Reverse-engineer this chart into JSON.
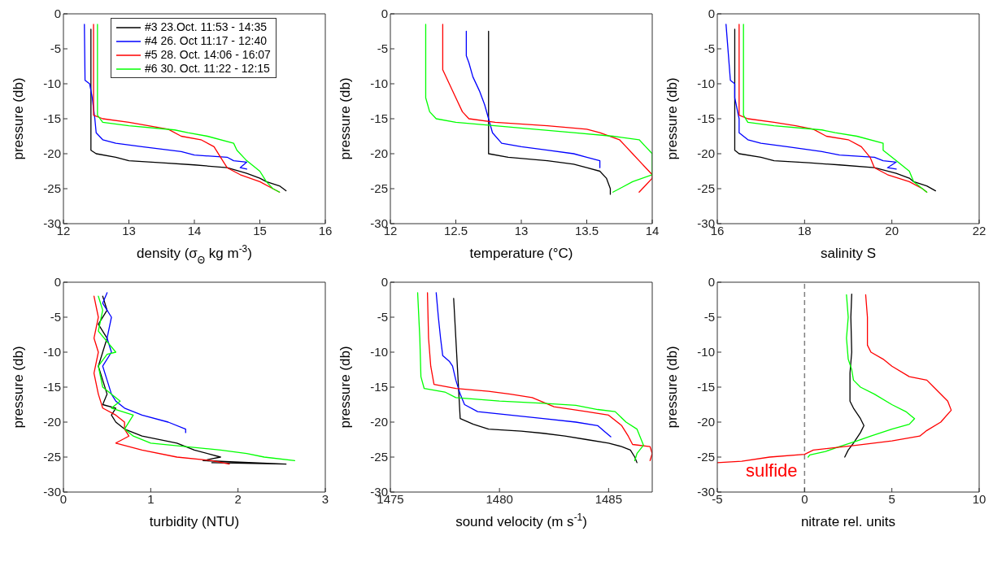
{
  "chart_data": [
    {
      "type": "line",
      "xlabel": "density (σ$_{Θ}$  kg m$^{-3}$)",
      "ylabel": "pressure (db)",
      "xlim": [
        12,
        16
      ],
      "xticks": [
        12,
        13,
        14,
        15,
        16
      ],
      "ylim": [
        -30,
        0
      ],
      "yticks": [
        -30,
        -25,
        -20,
        -15,
        -10,
        -5,
        0
      ],
      "legend": "top left",
      "marker": "none",
      "series": [
        {
          "name": "#3 23.Oct. 11:53 - 14:35",
          "color": "#000000",
          "x": [
            12.42,
            12.42,
            12.5,
            12.8,
            13.0,
            13.5,
            14.0,
            14.5,
            14.8,
            15.0,
            15.1,
            15.3,
            15.4
          ],
          "values": [
            -2.2,
            -19.5,
            -20,
            -20.5,
            -21,
            -21.3,
            -21.6,
            -22,
            -22.8,
            -23.5,
            -24,
            -24.6,
            -25.3
          ]
        },
        {
          "name": "#4 26. Oct 11:17 - 12:40",
          "color": "#0000ff",
          "x": [
            12.32,
            12.33,
            12.4,
            12.44,
            12.48,
            12.5,
            12.6,
            12.8,
            13.2,
            13.8,
            14.0,
            14.5,
            14.6,
            14.8,
            14.7,
            14.8
          ],
          "values": [
            -1.5,
            -9.5,
            -10,
            -12,
            -15,
            -17,
            -18,
            -18.5,
            -19,
            -19.7,
            -20.2,
            -20.5,
            -21,
            -21.2,
            -22,
            -22.2
          ]
        },
        {
          "name": "#5 28. Oct. 14:06 - 16:07",
          "color": "#ff0000",
          "x": [
            12.46,
            12.46,
            12.6,
            13.0,
            13.3,
            13.6,
            13.8,
            14.1,
            14.3,
            14.4,
            14.5,
            14.7,
            15.0,
            15.2,
            15.3
          ],
          "values": [
            -1.5,
            -14.5,
            -15,
            -15.5,
            -16,
            -16.5,
            -17.5,
            -18,
            -19,
            -20.5,
            -22,
            -23,
            -24,
            -25,
            -25.5
          ]
        },
        {
          "name": "#6 30. Oct. 11:22 - 12:15",
          "color": "#00ff00",
          "x": [
            12.52,
            12.52,
            12.6,
            13.0,
            13.7,
            13.9,
            14.2,
            14.6,
            14.65,
            14.8,
            15.0,
            15.1,
            15.2,
            15.3
          ],
          "values": [
            -1.5,
            -14.5,
            -15.5,
            -16,
            -16.6,
            -17,
            -17.5,
            -18.5,
            -19.5,
            -21,
            -22.5,
            -24,
            -25,
            -25.5
          ]
        }
      ]
    },
    {
      "type": "line",
      "xlabel": "temperature (°C)",
      "ylabel": "pressure (db)",
      "xlim": [
        12,
        14
      ],
      "xticks": [
        12,
        12.5,
        13,
        13.5,
        14
      ],
      "ylim": [
        -30,
        0
      ],
      "yticks": [
        -30,
        -25,
        -20,
        -15,
        -10,
        -5,
        0
      ],
      "marker": "none",
      "series": [
        {
          "color": "#000000",
          "x": [
            12.75,
            12.75,
            12.9,
            13.2,
            13.4,
            13.5,
            13.6,
            13.65,
            13.68,
            13.68
          ],
          "values": [
            -2.5,
            -20,
            -20.5,
            -21,
            -21.5,
            -22,
            -22.5,
            -23.5,
            -25,
            -25.8
          ]
        },
        {
          "color": "#0000ff",
          "x": [
            12.58,
            12.58,
            12.6,
            12.63,
            12.68,
            12.72,
            12.75,
            12.78,
            12.85,
            13.0,
            13.2,
            13.4,
            13.5,
            13.6,
            13.6
          ],
          "values": [
            -2.5,
            -6,
            -7,
            -9,
            -11,
            -13,
            -15,
            -17,
            -18.5,
            -19,
            -19.5,
            -20,
            -20.5,
            -21,
            -22
          ]
        },
        {
          "color": "#ff0000",
          "x": [
            12.4,
            12.4,
            12.45,
            12.5,
            12.55,
            12.6,
            12.8,
            13.2,
            13.5,
            13.6,
            13.75,
            13.8,
            13.85,
            13.9,
            13.95,
            14.0,
            14.0,
            13.95,
            13.9
          ],
          "values": [
            -1.5,
            -8,
            -10,
            -12,
            -14,
            -15,
            -15.5,
            -16,
            -16.5,
            -17,
            -18,
            -19,
            -20,
            -21,
            -22,
            -23,
            -23.5,
            -24.5,
            -25.5
          ]
        },
        {
          "color": "#00ff00",
          "x": [
            12.27,
            12.27,
            12.3,
            12.35,
            12.5,
            12.8,
            13.1,
            13.4,
            13.7,
            13.9,
            13.95,
            14.0,
            14.0,
            14.0,
            13.85,
            13.75,
            13.7
          ],
          "values": [
            -1.5,
            -12,
            -14,
            -15,
            -15.5,
            -16,
            -16.5,
            -17,
            -17.5,
            -18,
            -19,
            -20,
            -22,
            -23,
            -24,
            -25,
            -25.5
          ]
        }
      ]
    },
    {
      "type": "line",
      "xlabel": "salinity S",
      "ylabel": "pressure (db)",
      "xlim": [
        16,
        22
      ],
      "xticks": [
        16,
        18,
        20,
        22
      ],
      "ylim": [
        -30,
        0
      ],
      "yticks": [
        -30,
        -25,
        -20,
        -15,
        -10,
        -5,
        0
      ],
      "marker": "none",
      "series": [
        {
          "color": "#000000",
          "x": [
            16.4,
            16.4,
            16.5,
            17.0,
            17.3,
            18.1,
            18.8,
            19.6,
            20.1,
            20.4,
            20.5,
            20.8,
            21.0
          ],
          "values": [
            -2.2,
            -19.5,
            -20,
            -20.5,
            -21,
            -21.3,
            -21.6,
            -22,
            -22.8,
            -23.5,
            -24,
            -24.6,
            -25.3
          ]
        },
        {
          "color": "#0000ff",
          "x": [
            16.2,
            16.3,
            16.4,
            16.4,
            16.5,
            16.5,
            16.7,
            17.0,
            17.6,
            18.4,
            18.8,
            19.6,
            19.8,
            20.1,
            19.9,
            20.1
          ],
          "values": [
            -1.5,
            -9.5,
            -10,
            -12,
            -15,
            -17,
            -18,
            -18.5,
            -19,
            -19.7,
            -20.2,
            -20.5,
            -21,
            -21.2,
            -22,
            -22.2
          ]
        },
        {
          "color": "#ff0000",
          "x": [
            16.5,
            16.5,
            16.7,
            17.3,
            17.8,
            18.2,
            18.5,
            19.0,
            19.3,
            19.5,
            19.6,
            19.9,
            20.4,
            20.7,
            20.8
          ],
          "values": [
            -1.5,
            -14.5,
            -15,
            -15.5,
            -16,
            -16.5,
            -17.5,
            -18,
            -19,
            -20.5,
            -22,
            -23,
            -24,
            -25,
            -25.5
          ]
        },
        {
          "color": "#00ff00",
          "x": [
            16.6,
            16.6,
            16.7,
            17.3,
            18.4,
            18.7,
            19.2,
            19.8,
            19.8,
            20.1,
            20.4,
            20.5,
            20.7,
            20.8
          ],
          "values": [
            -1.5,
            -14.5,
            -15.5,
            -16,
            -16.6,
            -17,
            -17.5,
            -18.5,
            -19.5,
            -21,
            -22.5,
            -24,
            -25,
            -25.5
          ]
        }
      ]
    },
    {
      "type": "line",
      "xlabel": "turbidity (NTU)",
      "ylabel": "pressure (db)",
      "xlim": [
        0,
        3
      ],
      "xticks": [
        0,
        1,
        2,
        3
      ],
      "ylim": [
        -30,
        0
      ],
      "yticks": [
        -30,
        -25,
        -20,
        -15,
        -10,
        -5,
        0
      ],
      "marker": "none",
      "series": [
        {
          "color": "#000000",
          "x": [
            0.45,
            0.5,
            0.4,
            0.5,
            0.45,
            0.4,
            0.45,
            0.5,
            0.45,
            0.6,
            0.55,
            0.6,
            0.7,
            0.9,
            1.3,
            1.5,
            1.8,
            1.6,
            2.55,
            1.7
          ],
          "values": [
            -2,
            -4,
            -6,
            -8,
            -10,
            -12,
            -14,
            -16,
            -17.5,
            -18,
            -19,
            -20,
            -21,
            -22,
            -23,
            -24,
            -25,
            -25.5,
            -26,
            -25.8
          ]
        },
        {
          "color": "#0000ff",
          "x": [
            0.5,
            0.45,
            0.55,
            0.5,
            0.55,
            0.45,
            0.5,
            0.55,
            0.6,
            0.7,
            0.9,
            1.2,
            1.4,
            1.4
          ],
          "values": [
            -1.5,
            -3,
            -5,
            -8,
            -10,
            -12,
            -14,
            -16,
            -17,
            -18,
            -19,
            -20,
            -21,
            -21.5
          ]
        },
        {
          "color": "#ff0000",
          "x": [
            0.35,
            0.4,
            0.35,
            0.4,
            0.35,
            0.4,
            0.45,
            0.6,
            0.7,
            0.7,
            0.75,
            0.6,
            0.9,
            1.3,
            1.7,
            1.9
          ],
          "values": [
            -2,
            -5,
            -8,
            -10,
            -13,
            -16,
            -18,
            -19,
            -20,
            -21,
            -22,
            -23,
            -24,
            -25,
            -25.5,
            -26
          ]
        },
        {
          "color": "#00ff00",
          "x": [
            0.4,
            0.45,
            0.4,
            0.6,
            0.5,
            0.4,
            0.45,
            0.65,
            0.55,
            0.8,
            0.7,
            0.8,
            1.0,
            1.8,
            2.1,
            2.3,
            2.65
          ],
          "values": [
            -2,
            -4,
            -7,
            -10,
            -10.3,
            -12,
            -15,
            -17,
            -18,
            -19,
            -21,
            -22,
            -23,
            -24,
            -24.5,
            -25,
            -25.5
          ]
        }
      ]
    },
    {
      "type": "line",
      "xlabel": "sound velocity (m s$^{-1}$)",
      "ylabel": "pressure (db)",
      "xlim": [
        1475,
        1487
      ],
      "xticks": [
        1475,
        1480,
        1485
      ],
      "ylim": [
        -30,
        0
      ],
      "yticks": [
        -30,
        -25,
        -20,
        -15,
        -10,
        -5,
        0
      ],
      "marker": "none",
      "series": [
        {
          "color": "#000000",
          "x": [
            1477.9,
            1478.2,
            1478.8,
            1479.5,
            1481,
            1482,
            1483,
            1484,
            1485,
            1485.6,
            1486,
            1486.2,
            1486.3
          ],
          "values": [
            -2.3,
            -19.5,
            -20.3,
            -21,
            -21.3,
            -21.6,
            -22,
            -22.5,
            -23,
            -23.5,
            -24,
            -25,
            -25.8
          ]
        },
        {
          "color": "#0000ff",
          "x": [
            1477.1,
            1477.2,
            1477.3,
            1477.4,
            1477.7,
            1477.85,
            1478,
            1478.2,
            1478.4,
            1479,
            1480.5,
            1482,
            1483.5,
            1484.5,
            1484.8,
            1485.1
          ],
          "values": [
            -1.5,
            -5,
            -8,
            -10.5,
            -11.3,
            -12,
            -14,
            -16,
            -17.5,
            -18.5,
            -19,
            -19.5,
            -20,
            -20.5,
            -21.3,
            -22.1
          ]
        },
        {
          "color": "#ff0000",
          "x": [
            1476.7,
            1476.75,
            1476.85,
            1477,
            1478,
            1479.5,
            1480.5,
            1481.5,
            1482.5,
            1484,
            1485,
            1485.6,
            1485.9,
            1486.1,
            1486.9,
            1487,
            1486.9
          ],
          "values": [
            -1.5,
            -8,
            -12,
            -14.6,
            -15.2,
            -15.6,
            -16,
            -16.5,
            -17.8,
            -18.5,
            -19,
            -20.5,
            -22,
            -23.2,
            -23.5,
            -24.5,
            -25.5
          ]
        },
        {
          "color": "#00ff00",
          "x": [
            1476.25,
            1476.35,
            1476.4,
            1476.55,
            1477.5,
            1478,
            1480,
            1482,
            1483.5,
            1484.5,
            1485.3,
            1485.8,
            1486.3,
            1486.6,
            1486.3,
            1486.2
          ],
          "values": [
            -1.5,
            -8,
            -13.5,
            -15.2,
            -15.7,
            -16.5,
            -17,
            -17.3,
            -17.6,
            -18.2,
            -18.5,
            -20,
            -21,
            -23.3,
            -24.5,
            -25.5
          ]
        }
      ]
    },
    {
      "type": "line",
      "xlabel": "nitrate rel. units",
      "ylabel": "pressure (db)",
      "xlim": [
        -5,
        10
      ],
      "xticks": [
        -5,
        0,
        5,
        10
      ],
      "ylim": [
        -30,
        0
      ],
      "yticks": [
        -30,
        -25,
        -20,
        -15,
        -10,
        -5,
        0
      ],
      "marker": "none",
      "ref_lines": [
        {
          "axis": "x",
          "value": 0,
          "color": "#808080",
          "line_style": "dashed"
        }
      ],
      "annotations": [
        "sulfide"
      ],
      "series": [
        {
          "color": "#000000",
          "x": [
            2.7,
            2.65,
            2.7,
            2.6,
            2.6,
            2.6,
            2.8,
            3.2,
            3.4,
            3.2,
            2.8,
            2.5,
            2.3
          ],
          "values": [
            -1.7,
            -5,
            -10,
            -13,
            -15,
            -17,
            -18,
            -19.5,
            -20.5,
            -21.5,
            -23,
            -24,
            -25
          ]
        },
        {
          "color": "#00ff00",
          "x": [
            2.4,
            2.5,
            2.4,
            2.5,
            2.7,
            2.8,
            3.2,
            4.0,
            5.0,
            5.8,
            6.3,
            6.0,
            5.0,
            3.8,
            3.0,
            2.0,
            1.2,
            0.3,
            0.2
          ],
          "values": [
            -1.8,
            -5,
            -8,
            -11,
            -12.5,
            -14,
            -15,
            -16,
            -17.5,
            -18.5,
            -19.5,
            -20.3,
            -21,
            -22,
            -22.7,
            -23.5,
            -24.2,
            -24.7,
            -25
          ]
        },
        {
          "color": "#ff0000",
          "x": [
            3.5,
            3.6,
            3.6,
            3.8,
            4.5,
            5.0,
            6.0,
            7.0,
            7.4,
            8.2,
            8.4,
            7.8,
            7.0,
            6.6,
            5.0,
            3.0,
            0.5,
            0.0,
            -2.0,
            -3.6,
            -5
          ],
          "values": [
            -1.8,
            -5,
            -9,
            -10,
            -11,
            -12,
            -13.5,
            -14,
            -15,
            -17,
            -18.3,
            -20,
            -21.2,
            -22,
            -22.7,
            -23.3,
            -24,
            -24.6,
            -25,
            -25.6,
            -25.8
          ]
        }
      ]
    }
  ]
}
